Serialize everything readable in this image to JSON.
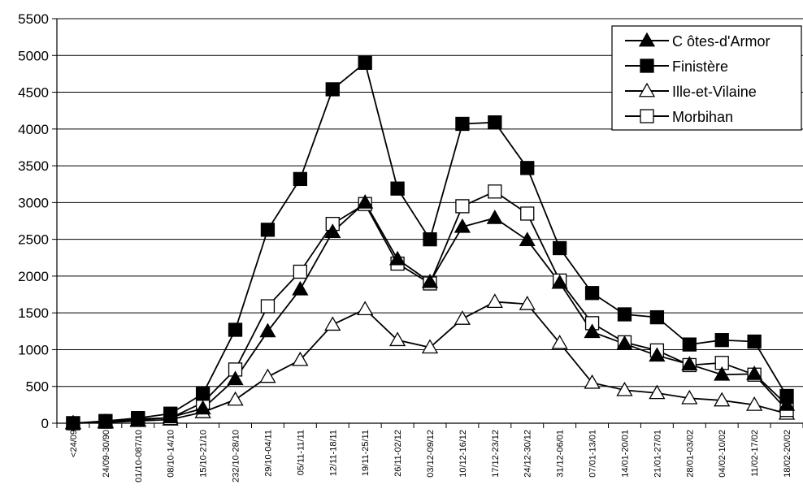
{
  "chart_data": {
    "type": "line",
    "title": "",
    "xlabel": "",
    "ylabel": "",
    "ylim": [
      0,
      5500
    ],
    "yticks": [
      "0",
      "500",
      "1000",
      "1500",
      "2000",
      "2500",
      "3000",
      "3500",
      "4000",
      "4500",
      "5000",
      "5500"
    ],
    "grid": "horizontal",
    "legend_position": "top-right",
    "categories": [
      "<24/09",
      "24/09-30/90",
      "01/10-087/10",
      "08/10-14/10",
      "15/10-21/10",
      "232/10-28/10",
      "29/10-04/11",
      "05/11-11/11",
      "12/11-18/11",
      "19/11-25/11",
      "26/11-02/12",
      "03/12-09/12",
      "10/12-16/12",
      "17/12-23/12",
      "24/12-30/12",
      "31/12-06/01",
      "07/01-13/01",
      "14/01-20/01",
      "21/01-27/01",
      "28/01-03/02",
      "04/02-10/02",
      "11/02-17/02",
      "18/02-20/02"
    ],
    "series": [
      {
        "name": "C ôtes-d'Armor",
        "marker": "filled-triangle",
        "values": [
          0,
          20,
          40,
          80,
          200,
          600,
          1250,
          1820,
          2600,
          3000,
          2230,
          1920,
          2670,
          2790,
          2490,
          1910,
          1240,
          1080,
          920,
          800,
          660,
          670,
          250
        ]
      },
      {
        "name": "Finistère",
        "marker": "filled-square",
        "values": [
          0,
          30,
          70,
          130,
          400,
          1270,
          2630,
          3320,
          4540,
          4900,
          3190,
          2500,
          4070,
          4090,
          3470,
          2380,
          1770,
          1480,
          1440,
          1070,
          1130,
          1110,
          370
        ]
      },
      {
        "name": "Ille-et-Vilaine",
        "marker": "hollow-triangle",
        "values": [
          0,
          10,
          30,
          50,
          150,
          320,
          630,
          860,
          1340,
          1550,
          1130,
          1030,
          1420,
          1650,
          1620,
          1090,
          550,
          450,
          410,
          340,
          310,
          250,
          130
        ]
      },
      {
        "name": "Morbihan",
        "marker": "hollow-square",
        "values": [
          0,
          20,
          60,
          70,
          280,
          730,
          1590,
          2060,
          2710,
          2980,
          2170,
          1900,
          2950,
          3150,
          2850,
          1940,
          1360,
          1100,
          990,
          790,
          820,
          660,
          180
        ]
      }
    ]
  }
}
